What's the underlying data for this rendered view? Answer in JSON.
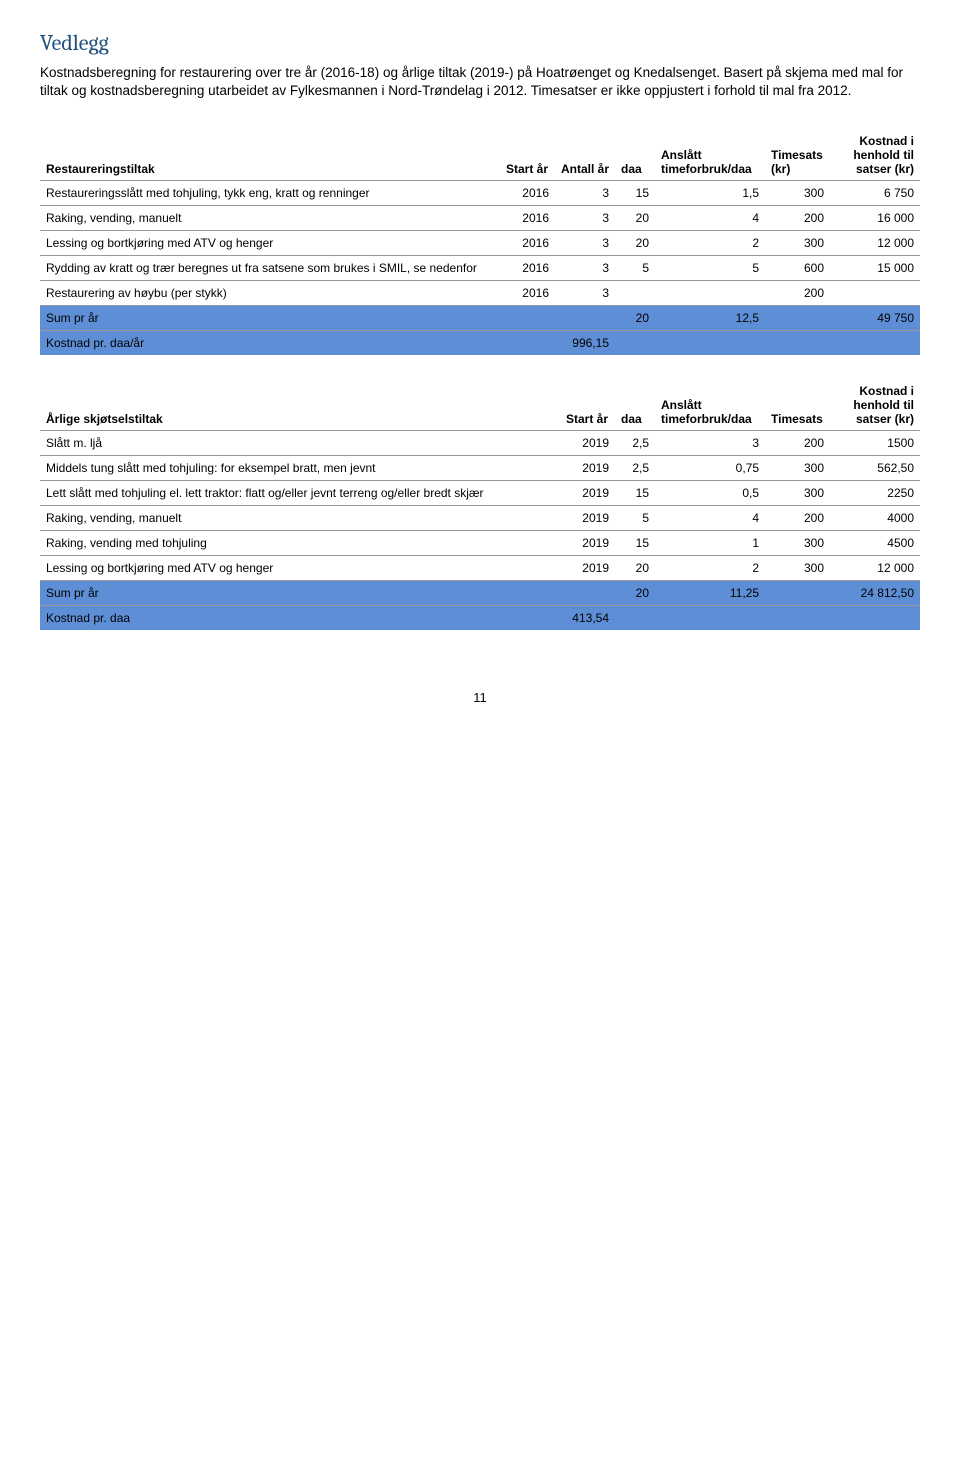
{
  "heading": "Vedlegg",
  "intro": "Kostnadsberegning for restaurering over tre år (2016-18) og årlige tiltak (2019-) på Hoatrøenget og Knedalsenget. Basert på skjema med mal for tiltak og kostnadsberegning utarbeidet av Fylkesmannen i Nord-Trøndelag i 2012. Timesatser er ikke oppjustert i forhold til mal fra 2012.",
  "table1": {
    "headers": {
      "c0": "Restaureringstiltak",
      "c1": "Start år",
      "c2": "Antall år",
      "c3": "daa",
      "c4": "Anslått timeforbruk/daa",
      "c5": "Timesats (kr)",
      "c6": "Kostnad i henhold til satser (kr)"
    },
    "rows": [
      {
        "c0": "Restaureringsslått med tohjuling, tykk eng, kratt og renninger",
        "c1": "2016",
        "c2": "3",
        "c3": "15",
        "c4": "1,5",
        "c5": "300",
        "c6": "6 750"
      },
      {
        "c0": "Raking, vending, manuelt",
        "c1": "2016",
        "c2": "3",
        "c3": "20",
        "c4": "4",
        "c5": "200",
        "c6": "16 000"
      },
      {
        "c0": "Lessing og bortkjøring med ATV og henger",
        "c1": "2016",
        "c2": "3",
        "c3": "20",
        "c4": "2",
        "c5": "300",
        "c6": "12 000"
      },
      {
        "c0": "Rydding av kratt og trær beregnes ut fra satsene som brukes i SMIL, se nedenfor",
        "c1": "2016",
        "c2": "3",
        "c3": "5",
        "c4": "5",
        "c5": "600",
        "c6": "15 000"
      },
      {
        "c0": "Restaurering av høybu (per stykk)",
        "c1": "2016",
        "c2": "3",
        "c3": "",
        "c4": "",
        "c5": "200",
        "c6": ""
      }
    ],
    "sum": {
      "c0": "Sum pr år",
      "c3": "20",
      "c4": "12,5",
      "c6": "49 750"
    },
    "kost": {
      "c0": "Kostnad pr. daa/år",
      "c1": "996,15"
    }
  },
  "table2": {
    "headers": {
      "c0": "Årlige skjøtselstiltak",
      "c1": "Start år",
      "c3": "daa",
      "c4": "Anslått timeforbruk/daa",
      "c5": "Timesats",
      "c6": "Kostnad i henhold til satser (kr)"
    },
    "rows": [
      {
        "c0": "Slått m. ljå",
        "c1": "2019",
        "c3": "2,5",
        "c4": "3",
        "c5": "200",
        "c6": "1500"
      },
      {
        "c0": "Middels tung slått med tohjuling: for eksempel bratt, men jevnt",
        "c1": "2019",
        "c3": "2,5",
        "c4": "0,75",
        "c5": "300",
        "c6": "562,50"
      },
      {
        "c0": "Lett slått med tohjuling el. lett traktor: flatt og/eller jevnt terreng og/eller bredt skjær",
        "c1": "2019",
        "c3": "15",
        "c4": "0,5",
        "c5": "300",
        "c6": "2250"
      },
      {
        "c0": "Raking, vending, manuelt",
        "c1": "2019",
        "c3": "5",
        "c4": "4",
        "c5": "200",
        "c6": "4000"
      },
      {
        "c0": "Raking, vending med tohjuling",
        "c1": "2019",
        "c3": "15",
        "c4": "1",
        "c5": "300",
        "c6": "4500"
      },
      {
        "c0": "Lessing og bortkjøring med ATV og henger",
        "c1": "2019",
        "c3": "20",
        "c4": "2",
        "c5": "300",
        "c6": "12 000"
      }
    ],
    "sum": {
      "c0": "Sum pr år",
      "c3": "20",
      "c4": "11,25",
      "c6": "24 812,50"
    },
    "kost": {
      "c0": "Kostnad pr. daa",
      "c1": "413,54"
    }
  },
  "pagenum": "11",
  "colors": {
    "heading": "#1f517f",
    "highlight": "#5e8fd6",
    "border": "#999999"
  }
}
